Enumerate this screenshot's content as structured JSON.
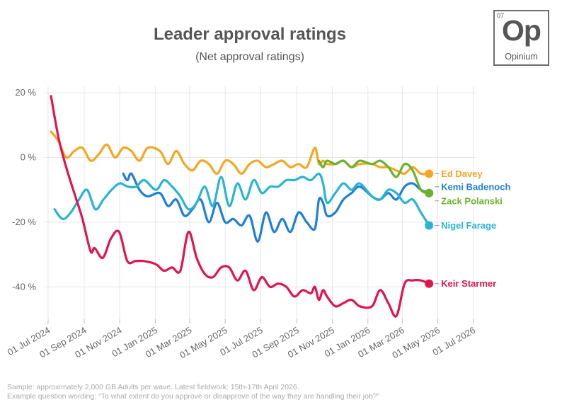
{
  "header": {
    "title": "Leader approval ratings",
    "subtitle": "(Net approval ratings)"
  },
  "logo": {
    "number": "07",
    "symbol": "Op",
    "name": "Opinium"
  },
  "footnotes": {
    "sample": "Sample: approximately 2,000 GB Adults per wave. Latest fieldwork: 15th-17th April 2026.",
    "question": "Example question wording: \"To what extent do you approve or disapprove of the way they are handling their job?\""
  },
  "chart_data": {
    "type": "line",
    "title": "Leader approval ratings",
    "subtitle": "(Net approval ratings)",
    "ylim": [
      -50,
      22
    ],
    "yticks": [
      20,
      0,
      -20,
      -40
    ],
    "ytick_labels": [
      "20 %",
      "0 %",
      "-20 %",
      "-40 %"
    ],
    "xlim": [
      "2024-06-25",
      "2026-07-05"
    ],
    "xticks": [
      "2024-07-01",
      "2024-09-01",
      "2024-11-01",
      "2025-01-01",
      "2025-03-01",
      "2025-05-01",
      "2025-07-01",
      "2025-09-01",
      "2025-11-01",
      "2026-01-01",
      "2026-03-01",
      "2026-05-01",
      "2026-07-01"
    ],
    "xtick_labels": [
      "01 Jul 2024",
      "01 Sep 2024",
      "01 Nov 2024",
      "01 Jan 2025",
      "01 Mar 2025",
      "01 May 2025",
      "01 Jul 2025",
      "01 Sep 2025",
      "01 Nov 2025",
      "01 Jan 2026",
      "01 Mar 2026",
      "01 May 2026",
      "01 Jul 2026"
    ],
    "grid": true,
    "legend": "direct labels at line ends",
    "series": [
      {
        "name": "Ed Davey",
        "color": "#f5a623",
        "x": [
          "2024-07-06",
          "2024-07-19",
          "2024-08-01",
          "2024-08-15",
          "2024-08-29",
          "2024-09-12",
          "2024-09-26",
          "2024-10-10",
          "2024-10-24",
          "2024-11-07",
          "2024-11-21",
          "2024-12-05",
          "2024-12-19",
          "2025-01-09",
          "2025-01-23",
          "2025-02-06",
          "2025-02-20",
          "2025-03-06",
          "2025-03-20",
          "2025-04-03",
          "2025-04-17",
          "2025-05-01",
          "2025-05-15",
          "2025-05-29",
          "2025-06-12",
          "2025-06-26",
          "2025-07-10",
          "2025-07-24",
          "2025-08-07",
          "2025-08-21",
          "2025-09-04",
          "2025-09-18",
          "2025-10-02",
          "2025-10-09",
          "2025-10-16",
          "2025-10-23",
          "2025-11-06",
          "2025-11-20",
          "2025-12-04",
          "2025-12-18",
          "2026-01-08",
          "2026-01-22",
          "2026-02-05",
          "2026-02-19",
          "2026-03-05",
          "2026-03-19",
          "2026-04-02",
          "2026-04-16"
        ],
        "values": [
          8,
          5,
          0,
          2,
          3,
          -1,
          1,
          4,
          0,
          3,
          2,
          -1,
          3,
          2,
          -2,
          2,
          -2,
          -4,
          -1,
          -2,
          -5,
          -1,
          -2,
          -5,
          -2,
          -1,
          -3,
          -2,
          -1,
          -3,
          -2,
          -3,
          3,
          -2,
          -1,
          -2,
          -2,
          -1,
          -3,
          -2,
          -2,
          -3,
          -3,
          -4,
          -5,
          -3,
          -5,
          -5
        ]
      },
      {
        "name": "Kemi Badenoch",
        "color": "#1f7fd4",
        "x": [
          "2024-11-07",
          "2024-11-14",
          "2024-11-21",
          "2024-12-05",
          "2024-12-19",
          "2025-01-09",
          "2025-01-23",
          "2025-02-06",
          "2025-02-20",
          "2025-03-06",
          "2025-03-20",
          "2025-04-03",
          "2025-04-17",
          "2025-05-01",
          "2025-05-15",
          "2025-05-29",
          "2025-06-12",
          "2025-06-26",
          "2025-07-10",
          "2025-07-24",
          "2025-08-07",
          "2025-08-21",
          "2025-09-04",
          "2025-09-18",
          "2025-10-02",
          "2025-10-09",
          "2025-10-16",
          "2025-10-23",
          "2025-11-06",
          "2025-11-20",
          "2025-12-04",
          "2025-12-18",
          "2026-01-08",
          "2026-01-22",
          "2026-02-05",
          "2026-02-19",
          "2026-03-05",
          "2026-03-19",
          "2026-04-02",
          "2026-04-16"
        ],
        "values": [
          -5,
          -7,
          -5,
          -10,
          -12,
          -11,
          -15,
          -13,
          -18,
          -16,
          -13,
          -20,
          -14,
          -20,
          -19,
          -21,
          -18,
          -26,
          -17,
          -23,
          -19,
          -23,
          -17,
          -20,
          -22,
          -13,
          -14,
          -18,
          -17,
          -13,
          -11,
          -9,
          -12,
          -13,
          -11,
          -13,
          -9,
          -8,
          -10,
          -11
        ]
      },
      {
        "name": "Zack Polanski",
        "color": "#6bb22e",
        "x": [
          "2025-10-09",
          "2025-10-16",
          "2025-10-23",
          "2025-11-06",
          "2025-11-20",
          "2025-12-04",
          "2025-12-18",
          "2026-01-08",
          "2026-01-22",
          "2026-02-05",
          "2026-02-19",
          "2026-03-05",
          "2026-03-19",
          "2026-04-02",
          "2026-04-16"
        ],
        "values": [
          -1,
          -3,
          -1,
          -2,
          -1,
          -3,
          -1,
          -2,
          -1,
          -3,
          -6,
          -2,
          -4,
          -10,
          -11
        ]
      },
      {
        "name": "Nigel Farage",
        "color": "#29b4d1",
        "x": [
          "2024-07-12",
          "2024-07-26",
          "2024-08-09",
          "2024-08-23",
          "2024-09-06",
          "2024-09-20",
          "2024-10-04",
          "2024-10-18",
          "2024-11-01",
          "2024-11-15",
          "2024-11-29",
          "2024-12-13",
          "2025-01-02",
          "2025-01-16",
          "2025-01-30",
          "2025-02-13",
          "2025-02-27",
          "2025-03-13",
          "2025-03-27",
          "2025-04-10",
          "2025-04-24",
          "2025-05-08",
          "2025-05-22",
          "2025-06-05",
          "2025-06-19",
          "2025-07-03",
          "2025-07-17",
          "2025-07-31",
          "2025-08-14",
          "2025-08-28",
          "2025-09-11",
          "2025-09-25",
          "2025-10-09",
          "2025-10-16",
          "2025-10-23",
          "2025-11-06",
          "2025-11-20",
          "2025-12-04",
          "2025-12-18",
          "2026-01-08",
          "2026-01-22",
          "2026-02-05",
          "2026-02-19",
          "2026-03-05",
          "2026-03-19",
          "2026-04-02",
          "2026-04-16"
        ],
        "values": [
          -16,
          -19,
          -17,
          -13,
          -10,
          -16,
          -13,
          -10,
          -8,
          -9,
          -9,
          -7,
          -10,
          -7,
          -9,
          -12,
          -16,
          -14,
          -9,
          -15,
          -6,
          -15,
          -8,
          -13,
          -7,
          -11,
          -9,
          -9,
          -7,
          -7,
          -6,
          -7,
          -5,
          -8,
          -14,
          -11,
          -8,
          -10,
          -8,
          -12,
          -13,
          -10,
          -11,
          -14,
          -13,
          -17,
          -21
        ]
      },
      {
        "name": "Keir Starmer",
        "color": "#e0144e",
        "x": [
          "2024-07-06",
          "2024-07-19",
          "2024-08-01",
          "2024-08-15",
          "2024-08-29",
          "2024-09-12",
          "2024-09-19",
          "2024-10-03",
          "2024-10-17",
          "2024-10-31",
          "2024-11-14",
          "2024-11-28",
          "2024-12-12",
          "2025-01-02",
          "2025-01-16",
          "2025-01-30",
          "2025-02-13",
          "2025-02-27",
          "2025-03-13",
          "2025-03-27",
          "2025-04-10",
          "2025-04-24",
          "2025-05-08",
          "2025-05-22",
          "2025-06-05",
          "2025-06-19",
          "2025-07-03",
          "2025-07-17",
          "2025-07-31",
          "2025-08-14",
          "2025-08-28",
          "2025-09-11",
          "2025-09-25",
          "2025-10-02",
          "2025-10-09",
          "2025-10-16",
          "2025-10-23",
          "2025-11-06",
          "2025-11-20",
          "2025-12-04",
          "2025-12-18",
          "2026-01-08",
          "2026-01-22",
          "2026-02-05",
          "2026-02-19",
          "2026-03-05",
          "2026-03-19",
          "2026-04-02",
          "2026-04-16"
        ],
        "values": [
          19,
          6,
          -3,
          -11,
          -19,
          -29,
          -28,
          -31,
          -25,
          -23,
          -32,
          -32,
          -32,
          -33,
          -35,
          -34,
          -35,
          -23,
          -31,
          -36,
          -37,
          -34,
          -34,
          -38,
          -35,
          -41,
          -37,
          -40,
          -39,
          -40,
          -43,
          -41,
          -42,
          -40,
          -44,
          -41,
          -43,
          -46,
          -45,
          -44,
          -46,
          -46,
          -41,
          -45,
          -49,
          -39,
          -38,
          -38,
          -39
        ]
      }
    ]
  }
}
